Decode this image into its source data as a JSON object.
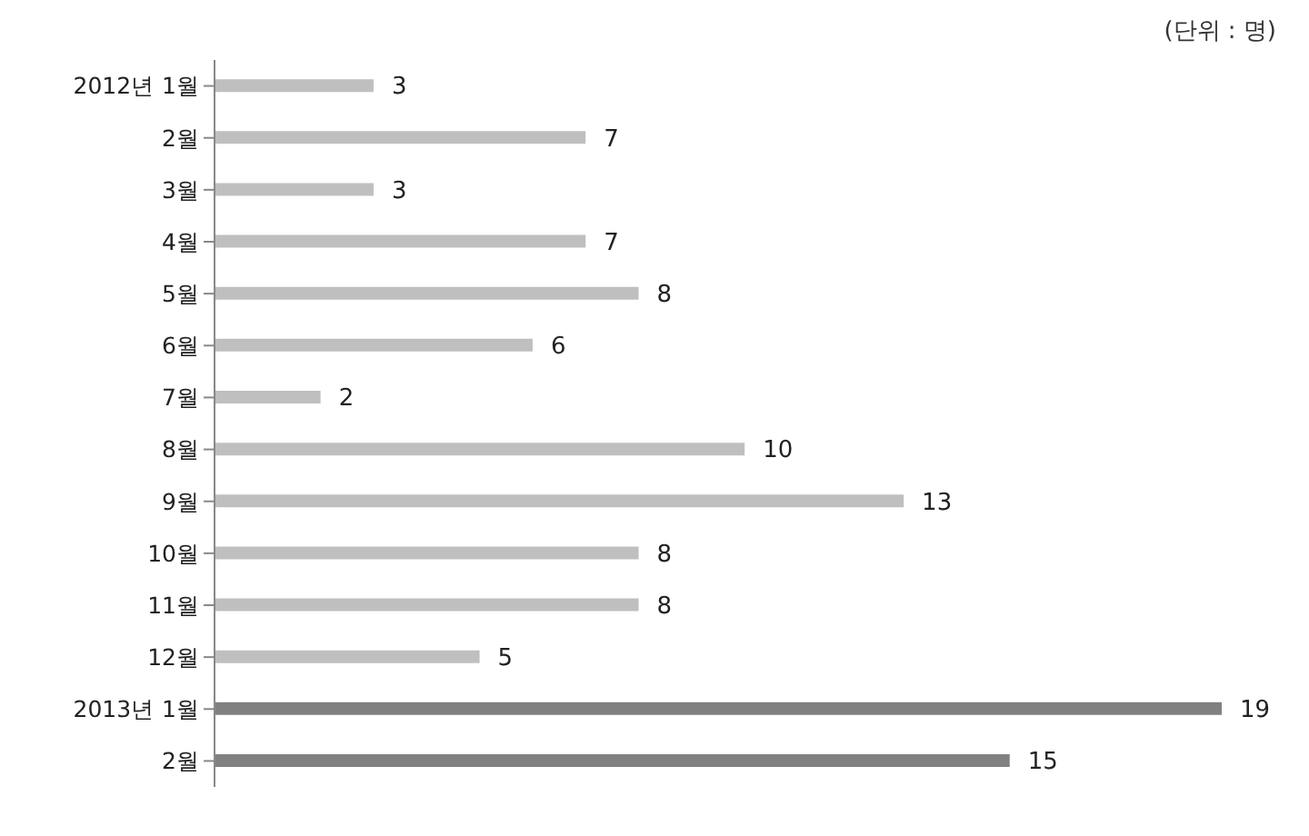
{
  "chart_data": {
    "type": "bar",
    "orientation": "horizontal",
    "categories": [
      "2012년 1월",
      "2월",
      "3월",
      "4월",
      "5월",
      "6월",
      "7월",
      "8월",
      "9월",
      "10월",
      "11월",
      "12월",
      "2013년 1월",
      "2월"
    ],
    "values": [
      3,
      7,
      3,
      7,
      8,
      6,
      2,
      10,
      13,
      8,
      8,
      5,
      19,
      15
    ],
    "colors": [
      "#bfbfbf",
      "#bfbfbf",
      "#bfbfbf",
      "#bfbfbf",
      "#bfbfbf",
      "#bfbfbf",
      "#bfbfbf",
      "#bfbfbf",
      "#bfbfbf",
      "#bfbfbf",
      "#bfbfbf",
      "#bfbfbf",
      "#808080",
      "#808080"
    ],
    "data_labels": true,
    "annotations": [
      "(단위 : 명)"
    ],
    "grid": false,
    "legend": false
  }
}
